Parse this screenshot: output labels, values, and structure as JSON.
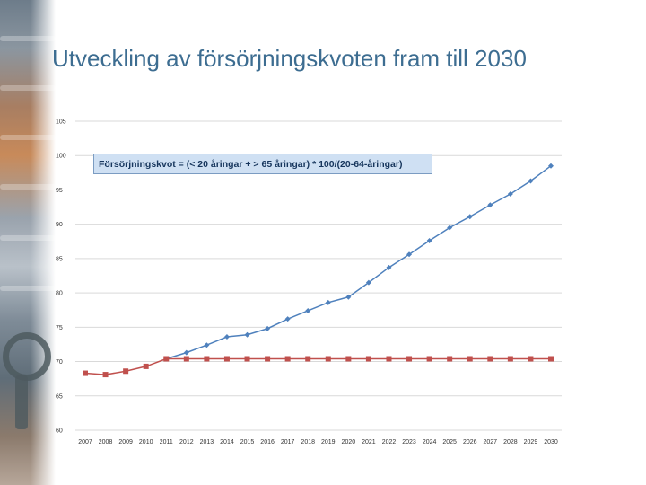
{
  "slide": {
    "title": "Utveckling av försörjningskvoten fram till 2030"
  },
  "formula_box": {
    "text": "Försörjningskvot =  (< 20 åringar + > 65 åringar) * 100/(20-64-åringar)"
  },
  "colors": {
    "title": "#3d6d91",
    "series_blue": "#4f81bd",
    "series_red": "#c0504d",
    "grid": "#d9d9d9"
  },
  "chart_data": {
    "type": "line",
    "x": [
      2007,
      2008,
      2009,
      2010,
      2011,
      2012,
      2013,
      2014,
      2015,
      2016,
      2017,
      2018,
      2019,
      2020,
      2021,
      2022,
      2023,
      2024,
      2025,
      2026,
      2027,
      2028,
      2029,
      2030
    ],
    "ylim": [
      60,
      105
    ],
    "yticks": [
      60,
      65,
      70,
      75,
      80,
      85,
      90,
      95,
      100,
      105
    ],
    "grid": true,
    "legend": "none",
    "series": [
      {
        "color": "#4f81bd",
        "marker": "diamond",
        "values": [
          null,
          null,
          null,
          null,
          70.4,
          71.3,
          72.4,
          73.6,
          73.9,
          74.8,
          76.2,
          77.4,
          78.6,
          79.4,
          81.5,
          83.7,
          85.6,
          87.6,
          89.5,
          91.1,
          92.8,
          94.4,
          96.3,
          98.5
        ]
      },
      {
        "color": "#c0504d",
        "marker": "square",
        "values": [
          68.3,
          68.1,
          68.6,
          69.3,
          70.4,
          70.4,
          70.4,
          70.4,
          70.4,
          70.4,
          70.4,
          70.4,
          70.4,
          70.4,
          70.4,
          70.4,
          70.4,
          70.4,
          70.4,
          70.4,
          70.4,
          70.4,
          70.4,
          70.4
        ]
      }
    ]
  }
}
